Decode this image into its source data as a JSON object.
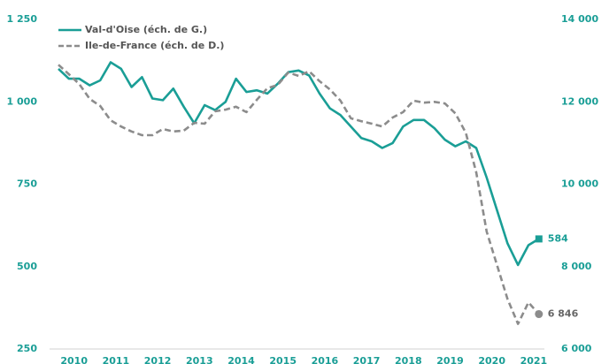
{
  "chart_data": {
    "type": "line",
    "categories": [
      "2010",
      null,
      null,
      null,
      "2011",
      null,
      null,
      null,
      "2012",
      null,
      null,
      null,
      "2013",
      null,
      null,
      null,
      "2014",
      null,
      null,
      null,
      "2015",
      null,
      null,
      null,
      "2016",
      null,
      null,
      null,
      "2017",
      null,
      null,
      null,
      "2018",
      null,
      null,
      null,
      "2019",
      null,
      null,
      null,
      "2020",
      null,
      null,
      null,
      "2021",
      null,
      null
    ],
    "series": [
      {
        "name": "Val-d'Oise (éch. de G.)",
        "color": "#1a9e96",
        "dash": false,
        "marker": "square",
        "values": [
          1100,
          1070,
          1070,
          1050,
          1065,
          1120,
          1100,
          1045,
          1075,
          1010,
          1005,
          1040,
          985,
          935,
          990,
          975,
          1000,
          1070,
          1030,
          1035,
          1025,
          1055,
          1090,
          1095,
          1080,
          1025,
          980,
          960,
          925,
          890,
          880,
          860,
          875,
          925,
          945,
          945,
          920,
          885,
          865,
          880,
          860,
          770,
          670,
          570,
          505,
          565,
          584
        ]
      },
      {
        "name": "Ile-de-France (éch. de D.)",
        "color": "#8c8c8c",
        "dash": true,
        "marker": "circle",
        "axis": "y2",
        "values": [
          12900,
          12670,
          12430,
          12070,
          11900,
          11550,
          11400,
          11280,
          11190,
          11190,
          11340,
          11280,
          11300,
          11490,
          11470,
          11770,
          11810,
          11880,
          11750,
          12050,
          12330,
          12410,
          12710,
          12630,
          12740,
          12500,
          12300,
          12030,
          11600,
          11530,
          11470,
          11400,
          11620,
          11750,
          12030,
          11980,
          12000,
          11960,
          11720,
          11250,
          10290,
          8850,
          8030,
          7210,
          6610,
          7130,
          6846
        ],
        "value_labels": [
          null,
          null,
          null,
          null,
          null,
          null,
          null,
          null,
          null,
          null,
          null,
          null,
          null,
          null,
          null,
          null,
          null,
          null,
          null,
          null,
          null,
          null,
          null,
          null,
          null,
          null,
          null,
          null,
          null,
          null,
          null,
          null,
          null,
          null,
          null,
          null,
          null,
          null,
          null,
          null,
          null,
          null,
          null,
          null,
          null,
          null,
          "6 846"
        ]
      }
    ],
    "ylim": [
      250,
      1250
    ],
    "yticks": [
      250,
      500,
      750,
      {
        "value": 1000,
        "label": "1 000"
      },
      {
        "value": 1250,
        "label": "1 250"
      }
    ],
    "y2lim": [
      6000,
      14000
    ],
    "y2ticks": [
      {
        "value": 6000,
        "label": "6 000"
      },
      {
        "value": 8000,
        "label": "8 000"
      },
      {
        "value": 10000,
        "label": "10 000"
      },
      {
        "value": 12000,
        "label": "12 000"
      },
      {
        "value": 14000,
        "label": "14 000"
      }
    ],
    "legend": "top-left"
  }
}
